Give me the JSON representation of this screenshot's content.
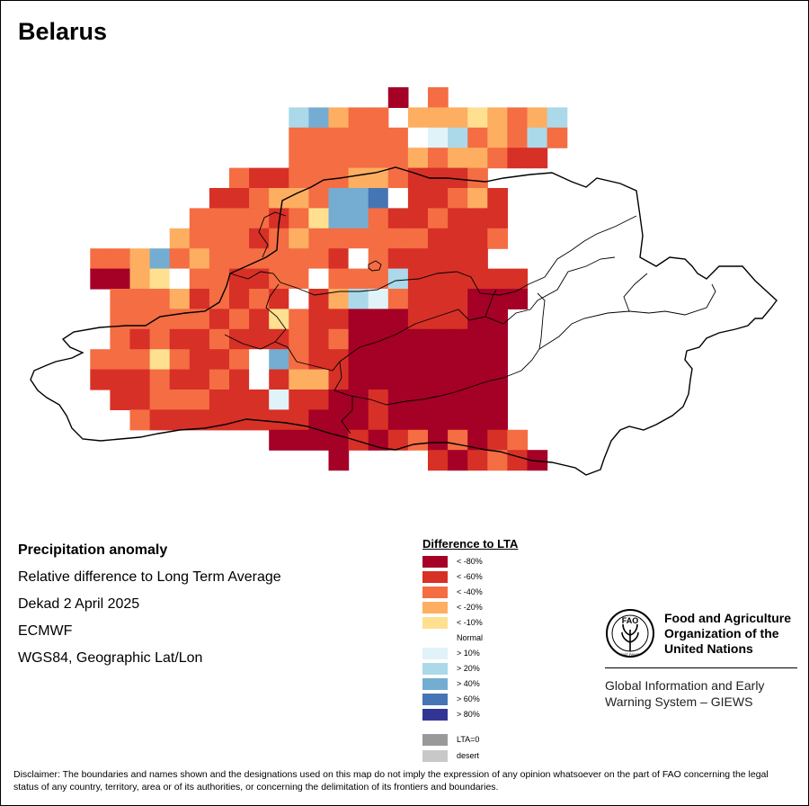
{
  "title": "Belarus",
  "info": {
    "title": "Precipitation anomaly",
    "subtitle": "Relative difference to Long Term Average",
    "period": "Dekad 2 April 2025",
    "source": "ECMWF",
    "projection": "WGS84, Geographic Lat/Lon"
  },
  "legend": {
    "title": "Difference to LTA",
    "items": [
      {
        "label": "< -80%",
        "color": "#A50026"
      },
      {
        "label": "< -60%",
        "color": "#D73027"
      },
      {
        "label": "< -40%",
        "color": "#F46D43"
      },
      {
        "label": "< -20%",
        "color": "#FDAE61"
      },
      {
        "label": "< -10%",
        "color": "#FEE090"
      },
      {
        "label": "Normal",
        "color": "#FFFFFF"
      },
      {
        "label": "> 10%",
        "color": "#E0F3F8"
      },
      {
        "label": "> 20%",
        "color": "#ABD9E9"
      },
      {
        "label": "> 40%",
        "color": "#74ADD1"
      },
      {
        "label": "> 60%",
        "color": "#4575B4"
      },
      {
        "label": "> 80%",
        "color": "#313695"
      }
    ],
    "extra": [
      {
        "label": "LTA=0",
        "color": "#999999"
      },
      {
        "label": "desert",
        "color": "#C8C8C8"
      }
    ]
  },
  "fao": {
    "emblem_text": "FAO",
    "emblem_motto": "FIAT PANIS",
    "name_line1": "Food and Agriculture",
    "name_line2": "Organization of the",
    "name_line3": "United Nations",
    "giews_line1": "Global Information and Early",
    "giews_line2": "Warning System – GIEWS"
  },
  "disclaimer": "Disclaimer: The boundaries and names shown and the designations used on this map do not imply the expression of any opinion whatsoever on the part of FAO concerning the legal status of any country, territory, area or of its authorities, or concerning the delimitation of its frontiers and boundaries.",
  "map": {
    "grid_cols": 37,
    "grid_rows": 19,
    "classes": [
      "                  0  2       ",
      "             78 3 2 2  3 33 4 3 2 3 7",
      "             22 2 2 2 2 56 7 2 3 2 7 2",
      "             22 2 2 2 2 3 2 3 3 2 1 1",
      "          2 1 1 2 2 2 3 3 2 1 1 1 2",
      "         1 1 2 3 3 2 8 8 9 5 1 1 2 3 1",
      "        2 2 2 2 1 2 4 8 8 2 1 1 2 1 1 1",
      "       3 2 2 2 1 2 3 2 2 2 2 2 2 1 1 1 2",
      "   2 2 3 8 2 3 2 2 2 2 2 2 1 5 2 1 1 1 1 1",
      "   0 0 3 4 5 2 2 1 1 2 2 5 2 2 2 7 1 1 1 1 1 1",
      "    2 2 2 3 1 2 1 2 1 5 1 3 7 6 2 1 1 1 0 0 0",
      "    2 2 2 2 2 1 2 1 4 2 1 1 0 0 0 1 1 1 0 0",
      "    2 1 2 1 1 2 1 1 1 2 1 2 0 0 0 0 0 0 0 0",
      "   2 2 2 4 2 1 1 2 5 8 2 1 1 0 0 0 0 0 0 0 0",
      "   1 1 1 2 1 1 2 1 5 1 3 3 1 0 0 0 0 0 0 0 0",
      "    1 1 2 2 2 1 1 1 6 1 1 0 0 1 0 0 0 0 0 0",
      "     2 1 1 1 1 1 1 1 1 0 0 0 1 0 0 0 0 0 0",
      "            0 0 0 0 1 0 1 2 0 2 0 1 2",
      "               0     1 0 1 2 1 0"
    ]
  }
}
